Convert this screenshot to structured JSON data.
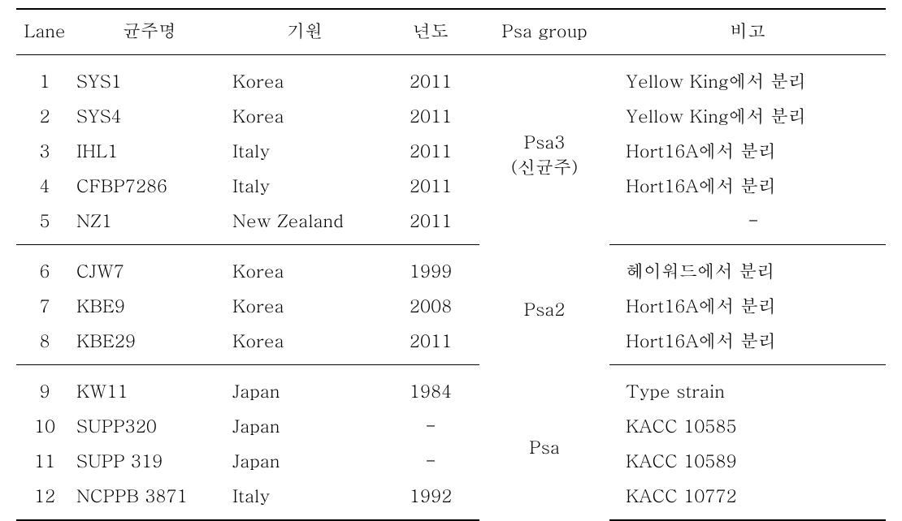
{
  "headers": {
    "lane": "Lane",
    "name": "균주명",
    "origin": "기원",
    "year": "년도",
    "group": "Psa group",
    "note": "비고"
  },
  "groups": [
    {
      "group_label_line1": "Psa3",
      "group_label_line2": "(신균주)",
      "rows": [
        {
          "lane": "1",
          "name": "SYS1",
          "origin": "Korea",
          "year": "2011",
          "note": "Yellow King에서 분리"
        },
        {
          "lane": "2",
          "name": "SYS4",
          "origin": "Korea",
          "year": "2011",
          "note": "Yellow King에서 분리"
        },
        {
          "lane": "3",
          "name": "IHL1",
          "origin": "Italy",
          "year": "2011",
          "note": "Hort16A에서 분리"
        },
        {
          "lane": "4",
          "name": "CFBP7286",
          "origin": "Italy",
          "year": "2011",
          "note": "Hort16A에서 분리"
        },
        {
          "lane": "5",
          "name": "NZ1",
          "origin": "New Zealand",
          "year": "2011",
          "note": "-",
          "note_center": true
        }
      ]
    },
    {
      "group_label_line1": "Psa2",
      "group_label_line2": "",
      "rows": [
        {
          "lane": "6",
          "name": "CJW7",
          "origin": "Korea",
          "year": "1999",
          "note": "헤이워드에서 분리"
        },
        {
          "lane": "7",
          "name": "KBE9",
          "origin": "Korea",
          "year": "2008",
          "note": "Hort16A에서 분리"
        },
        {
          "lane": "8",
          "name": "KBE29",
          "origin": "Korea",
          "year": "2011",
          "note": "Hort16A에서 분리"
        }
      ]
    },
    {
      "group_label_line1": "Psa",
      "group_label_line2": "",
      "rows": [
        {
          "lane": "9",
          "name": "KW11",
          "origin": "Japan",
          "year": "1984",
          "note": "Type strain"
        },
        {
          "lane": "10",
          "name": "SUPP320",
          "origin": "Japan",
          "year": "-",
          "note": "KACC 10585"
        },
        {
          "lane": "11",
          "name": "SUPP 319",
          "origin": "Japan",
          "year": "-",
          "note": "KACC 10589"
        },
        {
          "lane": "12",
          "name": "NCPPB 3871",
          "origin": "Italy",
          "year": "1992",
          "note": "KACC 10772"
        }
      ]
    }
  ]
}
